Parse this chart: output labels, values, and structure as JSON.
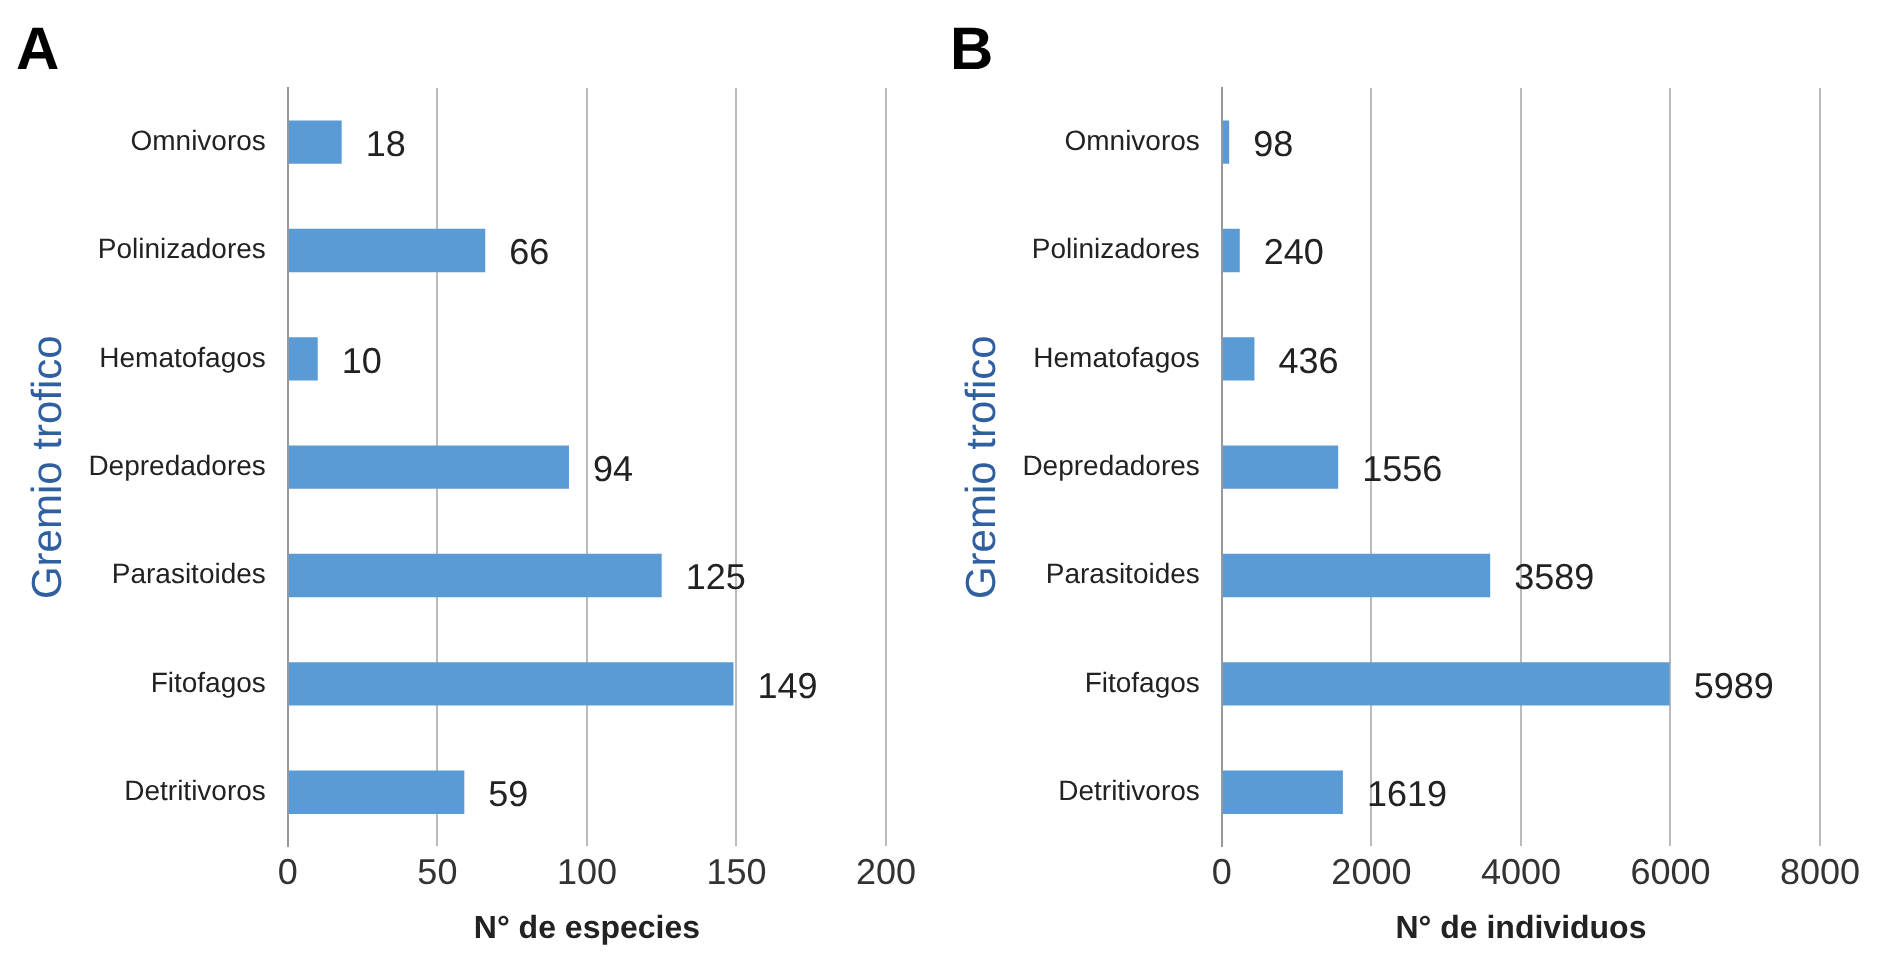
{
  "chart_data": [
    {
      "type": "bar",
      "orientation": "horizontal",
      "title": "A",
      "xlabel": "N° de especies",
      "ylabel": "Gremio trofico",
      "categories": [
        "Omnivoros",
        "Polinizadores",
        "Hematofagos",
        "Depredadores",
        "Parasitoides",
        "Fitofagos",
        "Detritivoros"
      ],
      "values": [
        18,
        66,
        10,
        94,
        125,
        149,
        59
      ],
      "color": "#5b9bd5",
      "xlim": [
        0,
        200
      ],
      "xticks": [
        0,
        50,
        100,
        150,
        200
      ],
      "grid": "x",
      "data_labels": true,
      "legend": false
    },
    {
      "type": "bar",
      "orientation": "horizontal",
      "title": "B",
      "xlabel": "N° de individuos",
      "ylabel": "Gremio trofico",
      "categories": [
        "Omnivoros",
        "Polinizadores",
        "Hematofagos",
        "Depredadores",
        "Parasitoides",
        "Fitofagos",
        "Detritivoros"
      ],
      "values": [
        98,
        240,
        436,
        1556,
        3589,
        5989,
        1619
      ],
      "color": "#5b9bd5",
      "xlim": [
        0,
        8000
      ],
      "xticks": [
        0,
        2000,
        4000,
        6000,
        8000
      ],
      "grid": "x",
      "data_labels": true,
      "legend": false
    }
  ]
}
